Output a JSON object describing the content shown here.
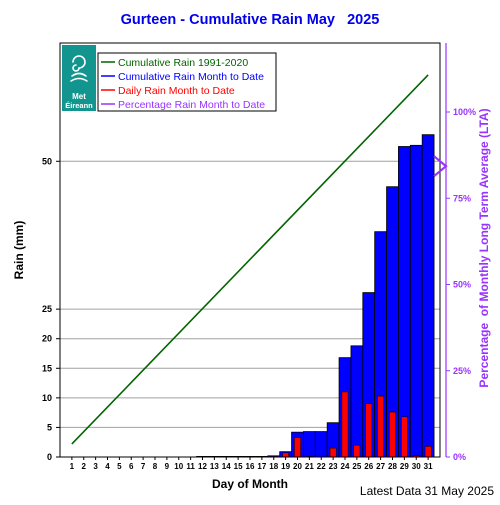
{
  "chart_data": {
    "type": "bar",
    "title": "Gurteen - Cumulative Rain May   2025",
    "xlabel": "Day of Month",
    "ylabel": "Rain (mm)",
    "y2label": "Percentage  of Monthly Long Term Average (LTA)",
    "footer": "Latest Data 31 May 2025",
    "logo_text": [
      "Met",
      "Éireann"
    ],
    "ylim": [
      0,
      70
    ],
    "y2lim": [
      0,
      120
    ],
    "y_ticks": [
      0,
      5,
      10,
      15,
      20,
      25,
      50
    ],
    "y2_ticks": [
      {
        "value": 0,
        "label": "0%"
      },
      {
        "value": 25,
        "label": "25%"
      },
      {
        "value": 50,
        "label": "50%"
      },
      {
        "value": 75,
        "label": "75%"
      },
      {
        "value": 100,
        "label": "100%"
      }
    ],
    "grid": true,
    "legend_position": "top-left",
    "colors": {
      "title": "#0000ee",
      "lta_line": "#006400",
      "cumulative_bar": "#0000ff",
      "daily_bar": "#ff0000",
      "percentage": "#9933ff",
      "logo": "#13958f"
    },
    "categories": [
      "1",
      "2",
      "3",
      "4",
      "5",
      "6",
      "7",
      "8",
      "9",
      "10",
      "11",
      "12",
      "13",
      "14",
      "15",
      "16",
      "17",
      "18",
      "19",
      "20",
      "21",
      "22",
      "23",
      "24",
      "25",
      "26",
      "27",
      "28",
      "29",
      "30",
      "31"
    ],
    "series": [
      {
        "name": "Cumulative Rain 1991-2020",
        "type": "line",
        "x": [
          1,
          31
        ],
        "values": [
          2.2,
          64.6
        ]
      },
      {
        "name": "Cumulative Rain Month to Date",
        "type": "bar",
        "values": [
          0,
          0,
          0,
          0,
          0,
          0,
          0,
          0,
          0,
          0,
          0,
          0.1,
          0.1,
          0.1,
          0.1,
          0.1,
          0.1,
          0.2,
          0.9,
          4.2,
          4.3,
          4.3,
          5.8,
          16.8,
          18.8,
          27.8,
          38.1,
          45.7,
          52.5,
          52.7,
          54.5
        ]
      },
      {
        "name": "Daily Rain Month to Date",
        "type": "bar",
        "values": [
          0,
          0,
          0,
          0,
          0,
          0,
          0,
          0,
          0,
          0,
          0,
          0.1,
          0,
          0,
          0,
          0,
          0,
          0.1,
          0.7,
          3.3,
          0.1,
          0,
          1.5,
          11,
          2,
          9,
          10.3,
          7.6,
          6.8,
          0.2,
          1.8
        ]
      },
      {
        "name": "Percentage Rain Month to Date",
        "type": "marker",
        "value": 84.3
      }
    ]
  }
}
